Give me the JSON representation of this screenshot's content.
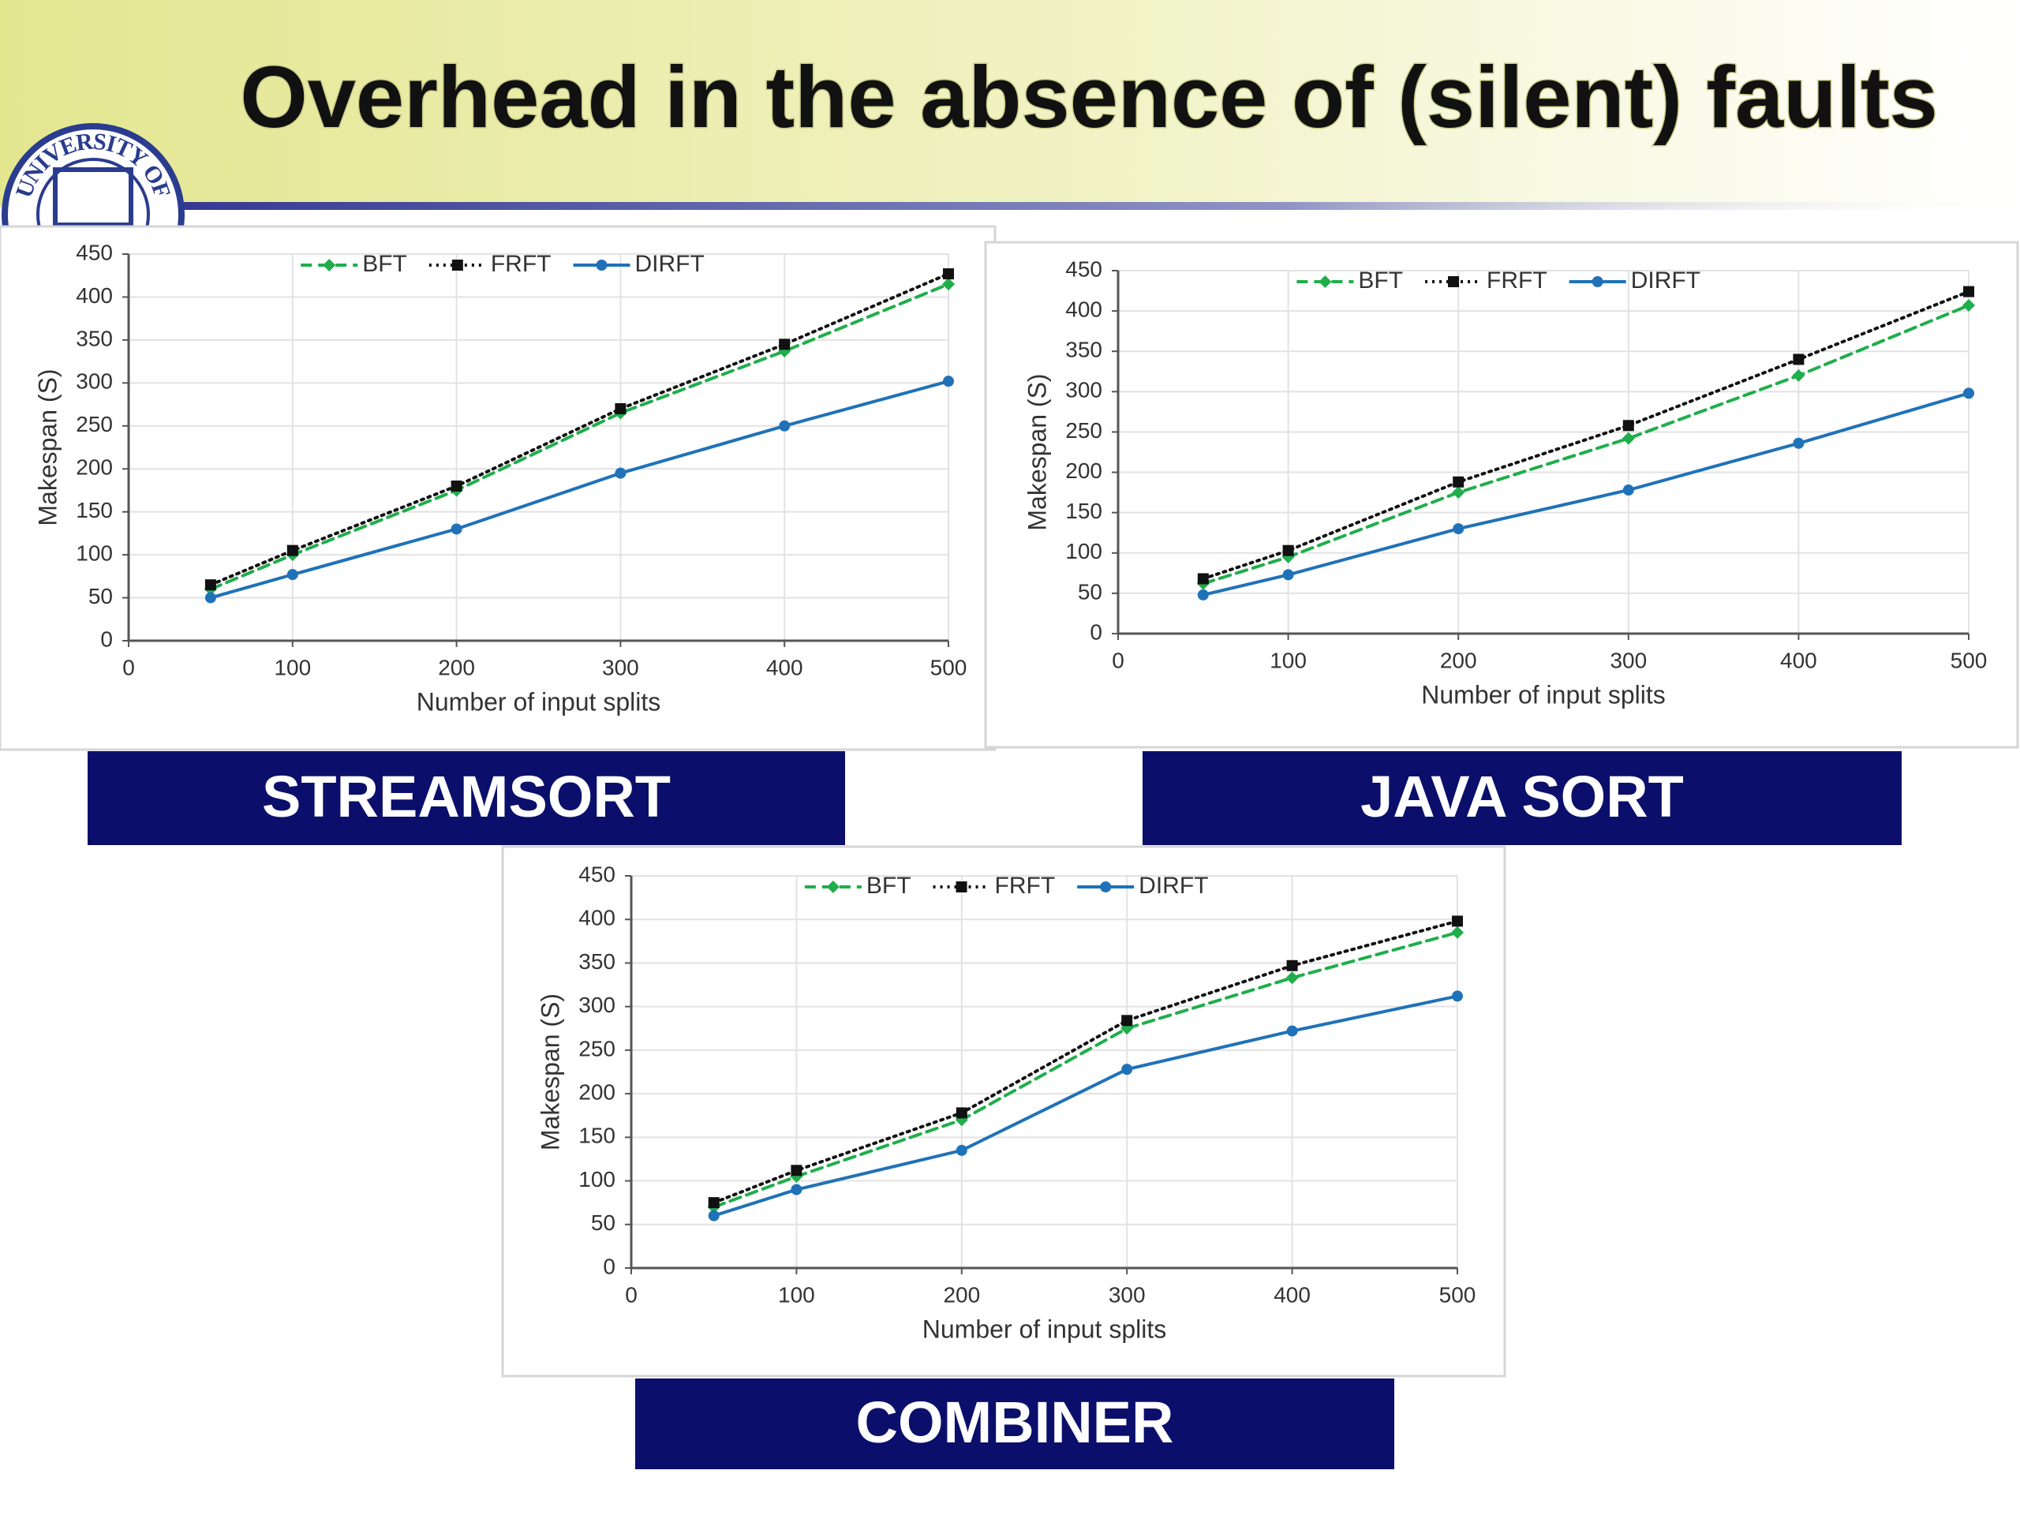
{
  "title": "Overhead in the absence of (silent) faults",
  "logo_text": "UNIVERSITY OF",
  "chart_data": [
    {
      "type": "line",
      "caption": "STREAMSORT",
      "xlabel": "Number of input splits",
      "ylabel": "Makespan (S)",
      "x": [
        50,
        100,
        200,
        300,
        400,
        500
      ],
      "xlim": [
        0,
        500
      ],
      "xticks": [
        0,
        100,
        200,
        300,
        400,
        500
      ],
      "ylim": [
        0,
        450
      ],
      "yticks": [
        0,
        50,
        100,
        150,
        200,
        250,
        300,
        350,
        400,
        450
      ],
      "grid": true,
      "legend": "top",
      "series": [
        {
          "name": "BFT",
          "color": "#1fae4b",
          "values": [
            60,
            100,
            175,
            265,
            337,
            415
          ]
        },
        {
          "name": "FRFT",
          "color": "#111111",
          "values": [
            65,
            105,
            180,
            270,
            345,
            427
          ]
        },
        {
          "name": "DIRFT",
          "color": "#1f72b8",
          "values": [
            50,
            77,
            130,
            195,
            250,
            302
          ]
        }
      ]
    },
    {
      "type": "line",
      "caption": "JAVA SORT",
      "xlabel": "Number of input splits",
      "ylabel": "Makespan (S)",
      "x": [
        50,
        100,
        200,
        300,
        400,
        500
      ],
      "xlim": [
        0,
        500
      ],
      "xticks": [
        0,
        100,
        200,
        300,
        400,
        500
      ],
      "ylim": [
        0,
        450
      ],
      "yticks": [
        0,
        50,
        100,
        150,
        200,
        250,
        300,
        350,
        400,
        450
      ],
      "grid": true,
      "legend": "top",
      "series": [
        {
          "name": "BFT",
          "color": "#1fae4b",
          "values": [
            62,
            95,
            175,
            242,
            320,
            407
          ]
        },
        {
          "name": "FRFT",
          "color": "#111111",
          "values": [
            68,
            103,
            188,
            258,
            340,
            424
          ]
        },
        {
          "name": "DIRFT",
          "color": "#1f72b8",
          "values": [
            48,
            73,
            130,
            178,
            236,
            298
          ]
        }
      ]
    },
    {
      "type": "line",
      "caption": "COMBINER",
      "xlabel": "Number of input splits",
      "ylabel": "Makespan (S)",
      "x": [
        50,
        100,
        200,
        300,
        400,
        500
      ],
      "xlim": [
        0,
        500
      ],
      "xticks": [
        0,
        100,
        200,
        300,
        400,
        500
      ],
      "ylim": [
        0,
        450
      ],
      "yticks": [
        0,
        50,
        100,
        150,
        200,
        250,
        300,
        350,
        400,
        450
      ],
      "grid": true,
      "legend": "top",
      "series": [
        {
          "name": "BFT",
          "color": "#1fae4b",
          "values": [
            70,
            105,
            170,
            275,
            333,
            385
          ]
        },
        {
          "name": "FRFT",
          "color": "#111111",
          "values": [
            75,
            112,
            178,
            284,
            347,
            398
          ]
        },
        {
          "name": "DIRFT",
          "color": "#1f72b8",
          "values": [
            60,
            90,
            135,
            228,
            272,
            312
          ]
        }
      ]
    }
  ]
}
